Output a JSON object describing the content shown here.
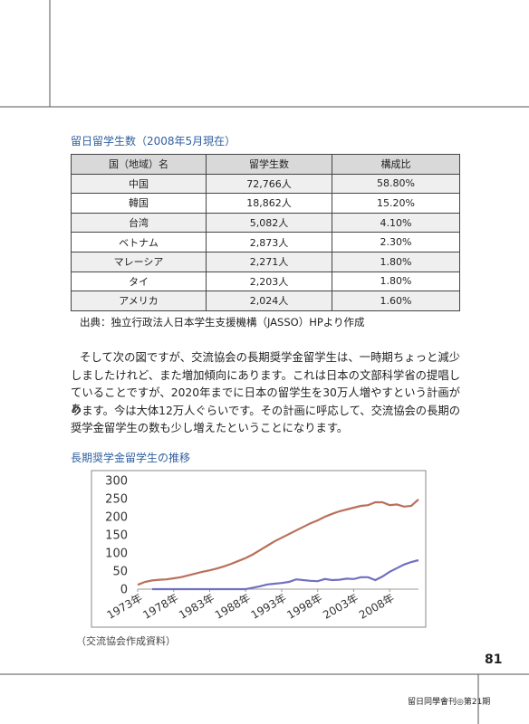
{
  "section_title": "留日留学生数（2008年5月現在）",
  "table": {
    "header": [
      "国（地域）名",
      "留学生数",
      "構成比"
    ],
    "rows": [
      [
        "中国",
        "72,766人",
        "58.80%"
      ],
      [
        "韓国",
        "18,862人",
        "15.20%"
      ],
      [
        "台湾",
        "5,082人",
        "4.10%"
      ],
      [
        "ベトナム",
        "2,873人",
        "2.30%"
      ],
      [
        "マレーシア",
        "2,271人",
        "1.80%"
      ],
      [
        "タイ",
        "2,203人",
        "1.80%"
      ],
      [
        "アメリカ",
        "2,024人",
        "1.60%"
      ]
    ]
  },
  "source": "出典：独立行政法人日本学生支援機構（JASSO）HPより作成",
  "paragraph": [
    "そして次の図ですが、交流協会の長期奨学金留学生は、一時期ちょっと減少",
    "しましたけれど、また増加傾向にあります。これは日本の文部科学省の提唱し",
    "ていることですが、2020年までに日本の留学生を30万人増やすという計画があ",
    "ります。今は大体12万人ぐらいです。その計画に呼応して、交流協会の長期の",
    "奨学金留学生の数も少し増えたということになります。"
  ],
  "chart_title": "長期奨学金留学生の推移",
  "chart_data": {
    "type": "line",
    "x": [
      1973,
      1974,
      1975,
      1976,
      1977,
      1978,
      1979,
      1980,
      1981,
      1982,
      1983,
      1984,
      1985,
      1986,
      1987,
      1988,
      1989,
      1990,
      1991,
      1992,
      1993,
      1994,
      1995,
      1996,
      1997,
      1998,
      1999,
      2000,
      2001,
      2002,
      2003,
      2004,
      2005,
      2006,
      2007,
      2008,
      2009,
      2010,
      2011,
      2012
    ],
    "series": [
      {
        "color": "#b9705a",
        "values": [
          12,
          20,
          24,
          26,
          27,
          30,
          33,
          38,
          43,
          48,
          52,
          57,
          63,
          70,
          78,
          86,
          96,
          108,
          120,
          132,
          142,
          152,
          162,
          172,
          182,
          190,
          200,
          208,
          215,
          220,
          225,
          230,
          232,
          240,
          240,
          232,
          234,
          228,
          230,
          248
        ]
      },
      {
        "color": "#7070c0",
        "values": [
          null,
          null,
          0,
          0,
          0,
          0,
          0,
          0,
          0,
          0,
          0,
          0,
          0,
          0,
          0,
          0,
          4,
          8,
          13,
          15,
          17,
          20,
          27,
          25,
          23,
          22,
          28,
          25,
          26,
          29,
          28,
          33,
          33,
          25,
          35,
          48,
          58,
          68,
          75,
          80
        ]
      }
    ],
    "xlim": [
      1973,
      2012
    ],
    "xticks": [
      {
        "value": 1973,
        "label": "1973年"
      },
      {
        "value": 1978,
        "label": "1978年"
      },
      {
        "value": 1983,
        "label": "1983年"
      },
      {
        "value": 1988,
        "label": "1988年"
      },
      {
        "value": 1993,
        "label": "1993年"
      },
      {
        "value": 1998,
        "label": "1998年"
      },
      {
        "value": 2003,
        "label": "2003年"
      },
      {
        "value": 2008,
        "label": "2008年"
      }
    ],
    "ylim": [
      0,
      300
    ],
    "yticks": [
      0,
      50,
      100,
      150,
      200,
      250,
      300
    ],
    "grid": false
  },
  "chart_note": "（交流協会作成資料）",
  "page_number": "81",
  "footer": "留日同學會刊◎第21期"
}
